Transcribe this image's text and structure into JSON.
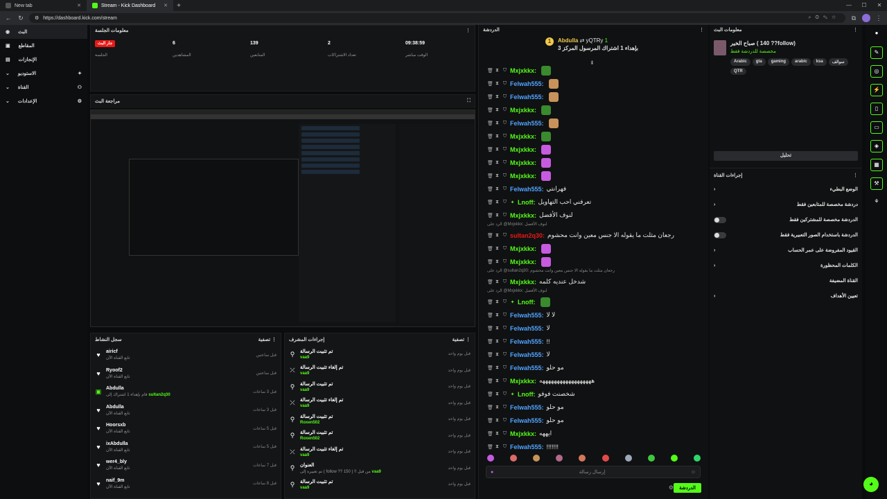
{
  "browser": {
    "tabs": [
      {
        "label": "New tab"
      },
      {
        "label": "Stream - Kick Dashboard"
      }
    ],
    "url": "https://dashboard.kick.com/stream"
  },
  "sidebar": {
    "items": [
      {
        "label": "البث",
        "active": true
      },
      {
        "label": "المقاطع"
      },
      {
        "label": "الإنجازات"
      },
      {
        "label": "الاستوديو"
      },
      {
        "label": "القناة"
      },
      {
        "label": "الإعدادات"
      }
    ]
  },
  "session": {
    "title": "معلومات الجلسة",
    "live_badge": "جار البث",
    "live_label": "الجلسة",
    "viewers": {
      "value": "6",
      "label": "المشاهدين"
    },
    "followers": {
      "value": "139",
      "label": "المتابعين"
    },
    "subs": {
      "value": "2",
      "label": "تعداد الاشتراكات"
    },
    "uptime": {
      "value": "09:38:59",
      "label": "الوقت مباشر"
    }
  },
  "preview": {
    "title": "مراجعة البث"
  },
  "activity": {
    "title": "سجل النشاط",
    "filter": "تصفية",
    "items": [
      {
        "name": "airicf",
        "sub": "تابع القناة الآن",
        "time": "قبل ساعتين",
        "icon": "heart"
      },
      {
        "name": "Ryoof2",
        "sub": "تابع القناة الآن",
        "time": "قبل ساعتين",
        "icon": "heart"
      },
      {
        "name": "Abdulla",
        "sub": "قام بإهداء 1 اشتراك إلى",
        "target": "sultan2q30",
        "time": "قبل 3 ساعات",
        "icon": "gift"
      },
      {
        "name": "Abdulla",
        "sub": "تابع القناة الآن",
        "time": "قبل 3 ساعات",
        "icon": "heart"
      },
      {
        "name": "Hoorsxb",
        "sub": "تابع القناة الآن",
        "time": "قبل 5 ساعات",
        "icon": "heart"
      },
      {
        "name": "ixAbdulla",
        "sub": "تابع القناة الآن",
        "time": "قبل 5 ساعات",
        "icon": "heart"
      },
      {
        "name": "wer4_bly",
        "sub": "تابع القناة الآن",
        "time": "قبل 7 ساعات",
        "icon": "heart"
      },
      {
        "name": "naif_9m",
        "sub": "تابع القناة الآن",
        "time": "قبل 8 ساعات",
        "icon": "heart"
      }
    ]
  },
  "modactions": {
    "title": "إجراءات المشرف",
    "filter": "تصفية",
    "items": [
      {
        "action": "تم تثبيت الرسالة",
        "by": "vaa9",
        "time": "قبل يوم واحد",
        "icon": "pin"
      },
      {
        "action": "تم إلغاء تثبيت الرسالة",
        "by": "vaa9",
        "time": "قبل يوم واحد",
        "icon": "unpin"
      },
      {
        "action": "تم تثبيت الرسالة",
        "by": "vaa9",
        "time": "قبل يوم واحد",
        "icon": "pin"
      },
      {
        "action": "تم إلغاء تثبيت الرسالة",
        "by": "vaa9",
        "time": "قبل يوم واحد",
        "icon": "unpin"
      },
      {
        "action": "تم تثبيت الرسالة",
        "by": "Roxen502",
        "time": "قبل يوم واحد",
        "icon": "pin"
      },
      {
        "action": "تم تثبيت الرسالة",
        "by": "Roxen502",
        "time": "قبل يوم واحد",
        "icon": "pin"
      },
      {
        "action": "تم إلغاء تثبيت الرسالة",
        "by": "vaa9",
        "time": "قبل يوم واحد",
        "icon": "unpin"
      },
      {
        "action": "العنوان",
        "by": "vaa9",
        "extra": "تم تغييره إلى ( follow ?? 150 ) !! من قبل",
        "time": "قبل يوم واحد",
        "icon": "pin"
      },
      {
        "action": "تم تثبيت الرسالة",
        "by": "vaa9",
        "time": "قبل يوم واحد",
        "icon": "pin"
      }
    ]
  },
  "chat": {
    "title": "الدردشة",
    "pinned": {
      "user": "Abdulla",
      "target": "yQTRy",
      "text": "بإهداء 1 اشتراك المرسول المركز 3",
      "count": "1"
    },
    "messages": [
      {
        "user": "Mxjxkkx",
        "color": "#53fc18",
        "text": "",
        "emote": "#3a8a2e"
      },
      {
        "user": "Felwah555",
        "color": "#4fa3ff",
        "text": "",
        "emote": "#c8935a"
      },
      {
        "user": "Felwah555",
        "color": "#4fa3ff",
        "text": "",
        "emote": "#c8935a"
      },
      {
        "user": "Mxjxkkx",
        "color": "#53fc18",
        "text": "",
        "emote": "#3a8a2e"
      },
      {
        "user": "Felwah555",
        "color": "#4fa3ff",
        "text": "",
        "emote": "#c8935a"
      },
      {
        "user": "Mxjxkkx",
        "color": "#53fc18",
        "text": "",
        "emote": "#3a8a2e"
      },
      {
        "user": "Mxjxkkx",
        "color": "#53fc18",
        "text": "",
        "emote": "#c65be0"
      },
      {
        "user": "Mxjxkkx",
        "color": "#53fc18",
        "text": "",
        "emote": "#c65be0"
      },
      {
        "user": "Mxjxkkx",
        "color": "#53fc18",
        "text": "",
        "emote": "#c65be0"
      },
      {
        "user": "Felwah555",
        "color": "#4fa3ff",
        "text": "فهرانتي",
        "emote": ""
      },
      {
        "user": "Lnoff",
        "color": "#53fc18",
        "text": "تعرفني احب التهاويل",
        "emote": ""
      },
      {
        "user": "Mxjxkkx",
        "color": "#53fc18",
        "text": "لنوف الأفضل",
        "emote": ""
      }
    ],
    "reply1": "الرد على @Mxjxkkx: لنوف الأفضل",
    "msg_sultan": {
      "user": "sultan2q30",
      "color": "#e91916",
      "text": "رجعان مثلت ما يقوله الا جنس معين وانت محشوم"
    },
    "messages2": [
      {
        "user": "Mxjxkkx",
        "color": "#53fc18",
        "text": "",
        "emote": "#c65be0"
      },
      {
        "user": "Mxjxkkx",
        "color": "#53fc18",
        "text": "",
        "emote": "#c65be0"
      }
    ],
    "reply2": "الرد على @sultan2q30: رجعان مثلت ما يقوله الا جنس معين وانت محشوم",
    "msg_after_reply2": {
      "user": "Mxjxkkx",
      "color": "#53fc18",
      "text": "شدخل عنديه كلمه"
    },
    "reply3": "الرد على @Mxjxkkx: لنوف الأفضل",
    "messages3": [
      {
        "user": "Lnoff",
        "color": "#53fc18",
        "text": "",
        "emote": "#3a8a2e"
      },
      {
        "user": "Felwah555",
        "color": "#4fa3ff",
        "text": "لا لا",
        "emote": ""
      },
      {
        "user": "Felwah555",
        "color": "#4fa3ff",
        "text": "لا",
        "emote": ""
      },
      {
        "user": "Felwah555",
        "color": "#4fa3ff",
        "text": "!!",
        "emote": ""
      },
      {
        "user": "Felwah555",
        "color": "#4fa3ff",
        "text": "لا",
        "emote": ""
      },
      {
        "user": "Felwah555",
        "color": "#4fa3ff",
        "text": "مو حلو",
        "emote": ""
      },
      {
        "user": "Mxjxkkx",
        "color": "#53fc18",
        "text": "ههههههههههههههههههه",
        "emote": ""
      },
      {
        "user": "Lnoff",
        "color": "#53fc18",
        "text": "شخصنت فوفو",
        "emote": ""
      },
      {
        "user": "Felwah555",
        "color": "#4fa3ff",
        "text": "مو حلو",
        "emote": ""
      },
      {
        "user": "Felwah555",
        "color": "#4fa3ff",
        "text": "مو حلو",
        "emote": ""
      },
      {
        "user": "Mxjxkkx",
        "color": "#53fc18",
        "text": "ايههه",
        "emote": ""
      },
      {
        "user": "Felwah555",
        "color": "#4fa3ff",
        "text": "!!!!!!!",
        "emote": ""
      }
    ],
    "input_placeholder": "إرسال رسالة",
    "send_label": "الدردشة"
  },
  "streaminfo": {
    "title": "معلومات البث",
    "stream_title": "صباح الخير ( 140 ??follow)",
    "category": "مخصصة للدردشة فقط",
    "tags": [
      "Arabic",
      "gta",
      "gaming",
      "arabic",
      "ksa",
      "سوالف",
      "QTR"
    ],
    "edit_label": "تحليل"
  },
  "channel_actions": {
    "title": "إجراءات القناة",
    "items": [
      {
        "label": "الوضع البطيء",
        "control": "chevron"
      },
      {
        "label": "دردشة مخصصة للمتابعين فقط",
        "control": "chevron"
      },
      {
        "label": "الدردشة مخصصة للمشتركين فقط",
        "control": "toggle"
      },
      {
        "label": "الدردشة باستخدام الصور التعبيرية فقط",
        "control": "toggle"
      },
      {
        "label": "القيود المفروضة على عمر الحساب",
        "control": "chevron"
      },
      {
        "label": "الكلمات المحظورة",
        "control": "chevron"
      },
      {
        "label": "القناة المضيفة",
        "control": "none"
      },
      {
        "label": "تعيين الأهداف",
        "control": "chevron"
      }
    ]
  }
}
